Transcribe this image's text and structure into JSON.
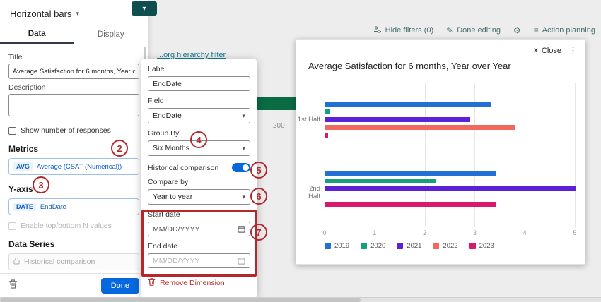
{
  "editor_panel": {
    "widget_type_label": "Horizontal bars",
    "tabs": [
      {
        "label": "Data"
      },
      {
        "label": "Display"
      }
    ],
    "fields": {
      "title_label": "Title",
      "title_value": "Average Satisfaction for 6 months, Year over Year",
      "description_label": "Description",
      "show_responses_label": "Show number of responses"
    },
    "metrics_heading": "Metrics",
    "metrics_chip": {
      "tag": "AVG",
      "label": "Average (CSAT (Numerical))"
    },
    "yaxis_heading": "Y-axis",
    "yaxis_chip": {
      "tag": "DATE",
      "label": "EndDate"
    },
    "enable_topbottom_label": "Enable top/bottom N values",
    "data_series_heading": "Data Series",
    "data_series_disabled_value": "Historical comparison",
    "done_button": "Done"
  },
  "dimension_popup": {
    "label_field": {
      "label": "Label",
      "value": "EndDate"
    },
    "field_select": {
      "label": "Field",
      "value": "EndDate"
    },
    "group_by_select": {
      "label": "Group By",
      "value": "Six Months"
    },
    "historical_toggle": {
      "label": "Historical comparison",
      "state": "on"
    },
    "compare_by_select": {
      "label": "Compare by",
      "value": "Year to year"
    },
    "start_date": {
      "label": "Start date",
      "placeholder": "MM/DD/YYYY"
    },
    "end_date": {
      "label": "End date",
      "placeholder": "MM/DD/YYYY"
    },
    "remove_button": "Remove Dimension"
  },
  "background_toolbar": {
    "hide_filters": "Hide filters (0)",
    "done_editing": "Done editing",
    "action_planning": "Action planning",
    "hierarchy_link": "...org hierarchy filter",
    "axis_value": "200"
  },
  "preview_card": {
    "close_label": "Close",
    "title": "Average Satisfaction for 6 months, Year over Year"
  },
  "annotations": {
    "n2": "2",
    "n3": "3",
    "n4": "4",
    "n5": "5",
    "n6": "6",
    "n7": "7"
  },
  "colors": {
    "accent_blue": "#0768dd",
    "annotation_red": "#b3282d",
    "toolbar_teal": "#44716f",
    "background_bar_green": "#0a6b45"
  },
  "chart_data": {
    "type": "bar",
    "orientation": "horizontal",
    "title": "Average Satisfaction for 6 months, Year over Year",
    "categories": [
      "1st Half",
      "2nd Half"
    ],
    "series": [
      {
        "name": "2019",
        "color": "#2270d4",
        "values": [
          3.3,
          3.4
        ]
      },
      {
        "name": "2020",
        "color": "#17a07c",
        "values": [
          0.1,
          2.2
        ]
      },
      {
        "name": "2021",
        "color": "#5b21d6",
        "values": [
          2.9,
          5.0
        ]
      },
      {
        "name": "2022",
        "color": "#f1685e",
        "values": [
          3.8,
          0
        ]
      },
      {
        "name": "2023",
        "color": "#d9196e",
        "values": [
          0.05,
          3.4
        ]
      }
    ],
    "xlim": [
      0,
      5
    ],
    "x_ticks": [
      0,
      1,
      2,
      3,
      4,
      5
    ],
    "xlabel": "",
    "ylabel": "",
    "grid": true,
    "legend_position": "bottom"
  }
}
